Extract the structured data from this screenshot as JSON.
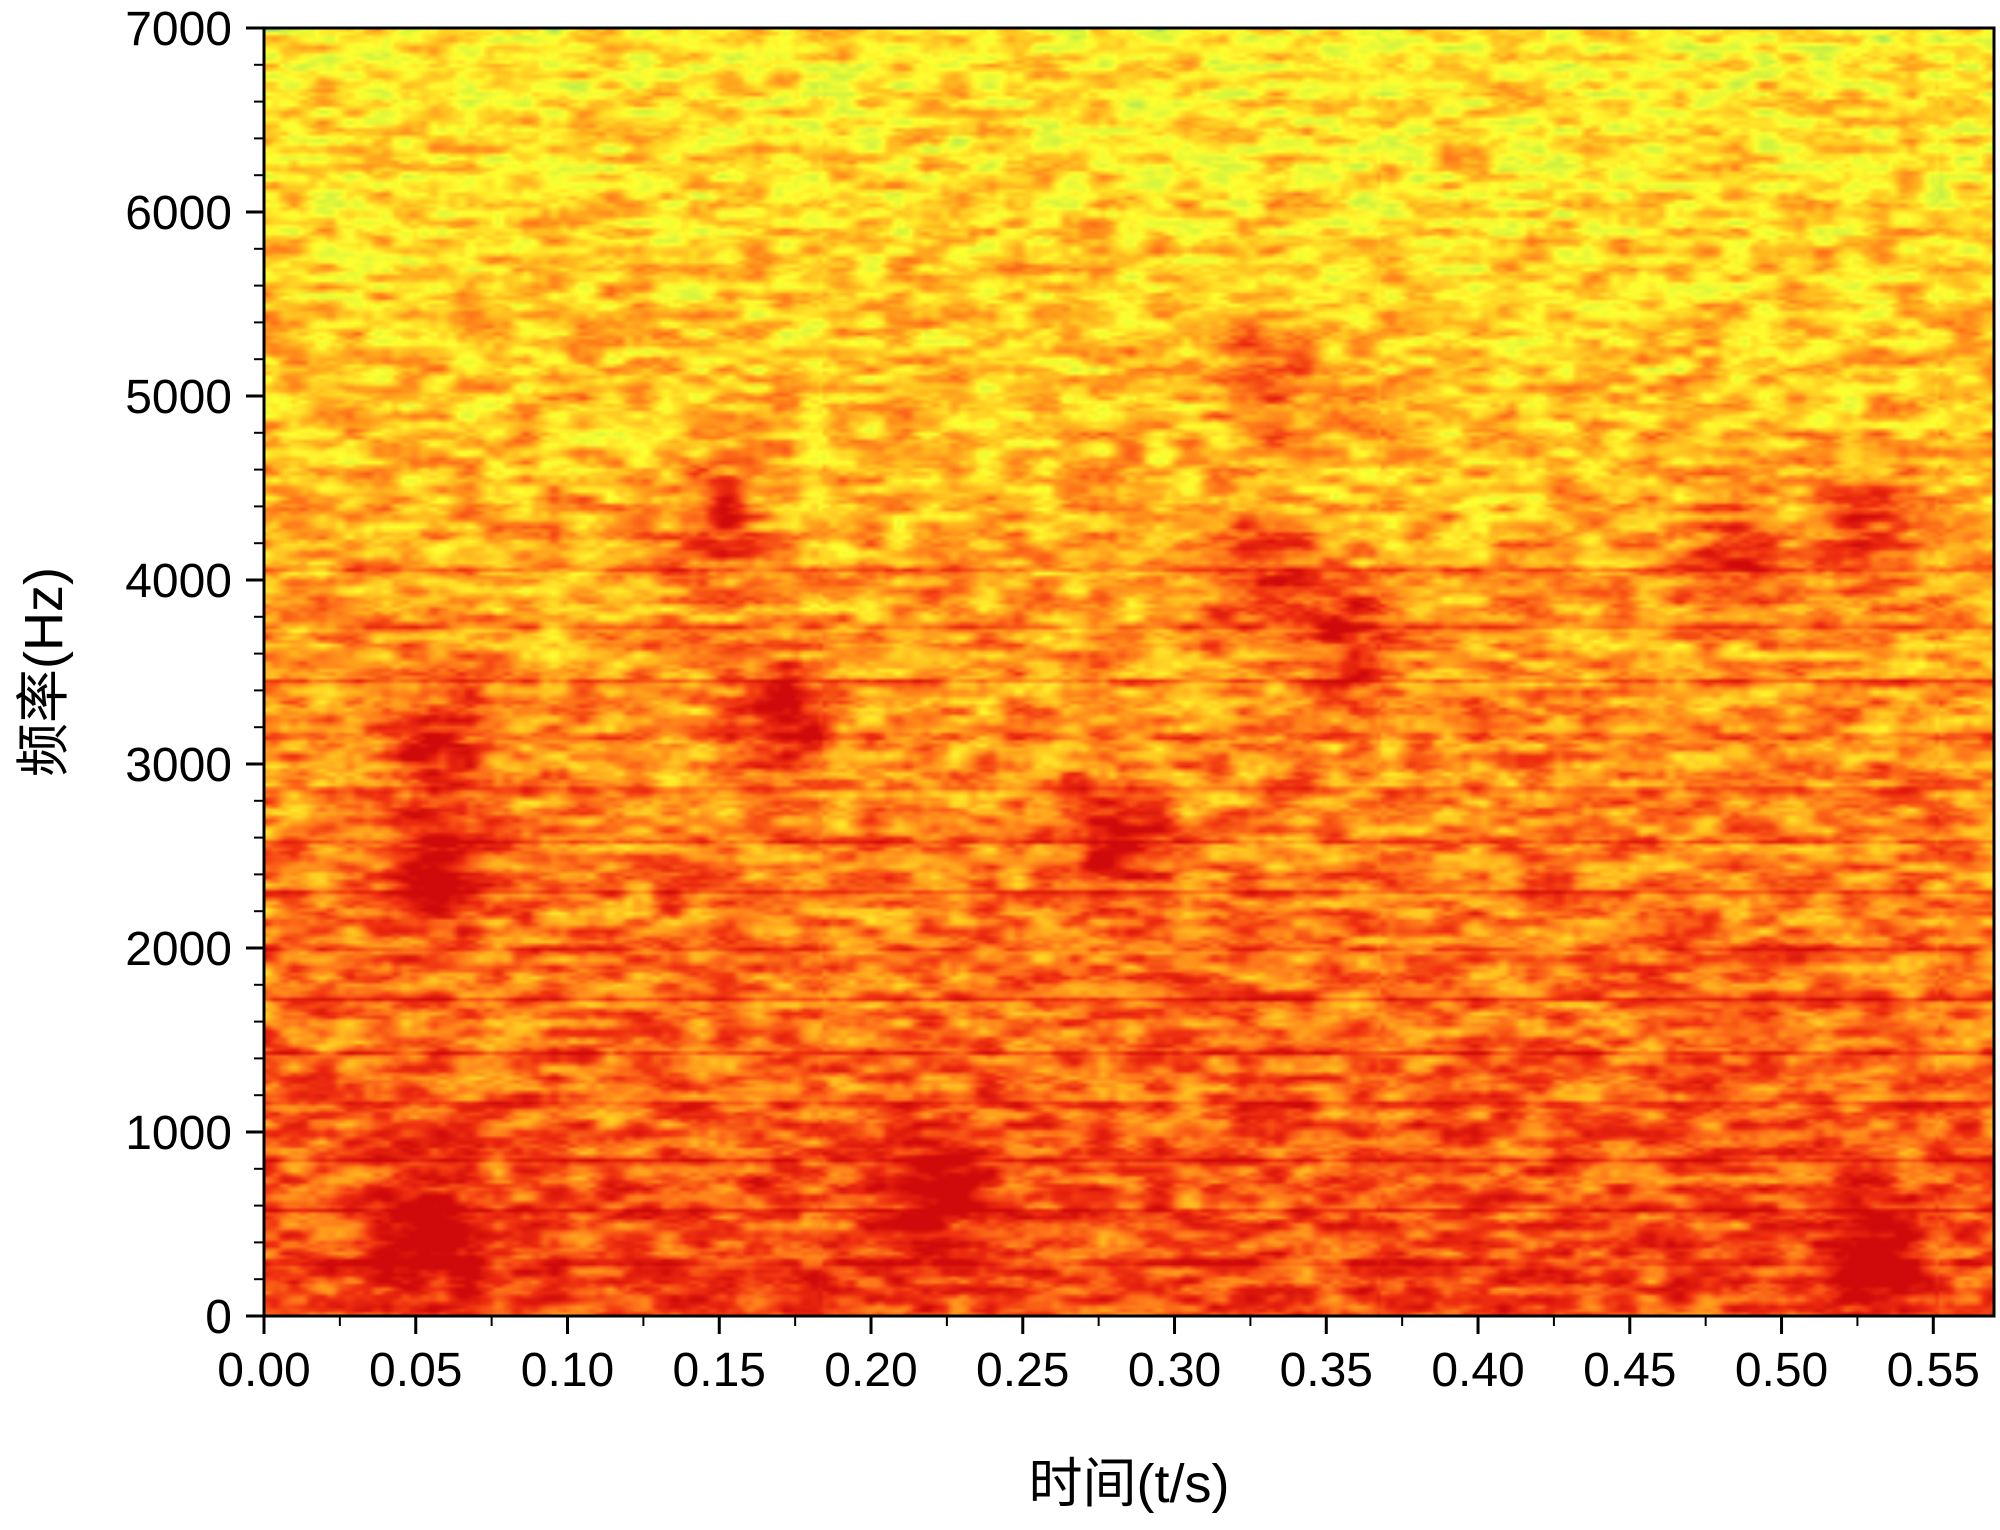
{
  "chart_data": {
    "type": "heatmap",
    "title": "",
    "xlabel": "时间(t/s)",
    "ylabel": "频率(Hz)",
    "xlim": [
      0,
      0.57
    ],
    "ylim": [
      0,
      7000
    ],
    "x_ticks": [
      "0.00",
      "0.05",
      "0.10",
      "0.15",
      "0.20",
      "0.25",
      "0.30",
      "0.35",
      "0.40",
      "0.45",
      "0.50",
      "0.55"
    ],
    "y_ticks": [
      "0",
      "1000",
      "2000",
      "3000",
      "4000",
      "5000",
      "6000",
      "7000"
    ],
    "x_tick_values": [
      0,
      0.05,
      0.1,
      0.15,
      0.2,
      0.25,
      0.3,
      0.35,
      0.4,
      0.45,
      0.5,
      0.55
    ],
    "y_tick_values": [
      0,
      1000,
      2000,
      3000,
      4000,
      5000,
      6000,
      7000
    ],
    "colormap": [
      "#1fa0e0",
      "#4fd0b0",
      "#c8f040",
      "#ffff30",
      "#ffc020",
      "#ff7a1a",
      "#f03010",
      "#d00a0a"
    ],
    "harmonic_lines_hz": [
      290,
      570,
      850,
      1150,
      1430,
      1720,
      2000,
      2300,
      2580,
      2860,
      3150,
      3450,
      3750,
      4060
    ],
    "energy_hotspots": [
      {
        "t": 0.055,
        "f": 2400,
        "level": 0.95
      },
      {
        "t": 0.055,
        "f": 3100,
        "level": 0.85
      },
      {
        "t": 0.055,
        "f": 400,
        "level": 0.95
      },
      {
        "t": 0.17,
        "f": 3250,
        "level": 0.85
      },
      {
        "t": 0.15,
        "f": 4300,
        "level": 0.8
      },
      {
        "t": 0.28,
        "f": 2600,
        "level": 0.9
      },
      {
        "t": 0.33,
        "f": 5100,
        "level": 0.85
      },
      {
        "t": 0.33,
        "f": 4000,
        "level": 0.85
      },
      {
        "t": 0.36,
        "f": 3700,
        "level": 0.8
      },
      {
        "t": 0.485,
        "f": 4100,
        "level": 0.9
      },
      {
        "t": 0.53,
        "f": 300,
        "level": 0.95
      },
      {
        "t": 0.53,
        "f": 4250,
        "level": 0.8
      },
      {
        "t": 0.22,
        "f": 700,
        "level": 0.8
      }
    ]
  }
}
